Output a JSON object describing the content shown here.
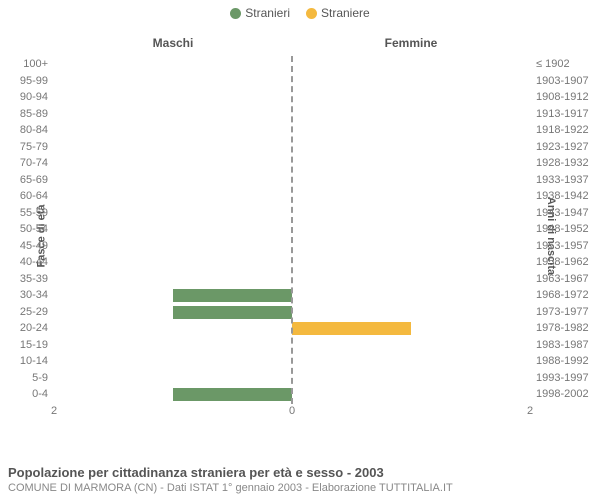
{
  "legend": {
    "male": {
      "label": "Stranieri",
      "color": "#6b9867"
    },
    "female": {
      "label": "Straniere",
      "color": "#f4b93f"
    }
  },
  "headers": {
    "left": "Maschi",
    "right": "Femmine"
  },
  "axis_titles": {
    "left": "Fasce di età",
    "right": "Anni di nascita"
  },
  "chart": {
    "type": "population-pyramid",
    "x_max": 2,
    "x_ticks_left": [
      2,
      0
    ],
    "x_ticks_right": [
      0,
      2
    ],
    "bar_color_male": "#6b9867",
    "bar_color_female": "#f4b93f",
    "center_line_color": "#999999",
    "background_color": "#ffffff",
    "label_color": "#777777",
    "rows": [
      {
        "age": "100+",
        "birth": "≤ 1902",
        "male": 0,
        "female": 0
      },
      {
        "age": "95-99",
        "birth": "1903-1907",
        "male": 0,
        "female": 0
      },
      {
        "age": "90-94",
        "birth": "1908-1912",
        "male": 0,
        "female": 0
      },
      {
        "age": "85-89",
        "birth": "1913-1917",
        "male": 0,
        "female": 0
      },
      {
        "age": "80-84",
        "birth": "1918-1922",
        "male": 0,
        "female": 0
      },
      {
        "age": "75-79",
        "birth": "1923-1927",
        "male": 0,
        "female": 0
      },
      {
        "age": "70-74",
        "birth": "1928-1932",
        "male": 0,
        "female": 0
      },
      {
        "age": "65-69",
        "birth": "1933-1937",
        "male": 0,
        "female": 0
      },
      {
        "age": "60-64",
        "birth": "1938-1942",
        "male": 0,
        "female": 0
      },
      {
        "age": "55-59",
        "birth": "1943-1947",
        "male": 0,
        "female": 0
      },
      {
        "age": "50-54",
        "birth": "1948-1952",
        "male": 0,
        "female": 0
      },
      {
        "age": "45-49",
        "birth": "1953-1957",
        "male": 0,
        "female": 0
      },
      {
        "age": "40-44",
        "birth": "1958-1962",
        "male": 0,
        "female": 0
      },
      {
        "age": "35-39",
        "birth": "1963-1967",
        "male": 0,
        "female": 0
      },
      {
        "age": "30-34",
        "birth": "1968-1972",
        "male": 1,
        "female": 0
      },
      {
        "age": "25-29",
        "birth": "1973-1977",
        "male": 1,
        "female": 0
      },
      {
        "age": "20-24",
        "birth": "1978-1982",
        "male": 0,
        "female": 1
      },
      {
        "age": "15-19",
        "birth": "1983-1987",
        "male": 0,
        "female": 0
      },
      {
        "age": "10-14",
        "birth": "1988-1992",
        "male": 0,
        "female": 0
      },
      {
        "age": "5-9",
        "birth": "1993-1997",
        "male": 0,
        "female": 0
      },
      {
        "age": "0-4",
        "birth": "1998-2002",
        "male": 1,
        "female": 0
      }
    ]
  },
  "footer": {
    "title": "Popolazione per cittadinanza straniera per età e sesso - 2003",
    "subtitle": "COMUNE DI MARMORA (CN) - Dati ISTAT 1° gennaio 2003 - Elaborazione TUTTITALIA.IT"
  }
}
